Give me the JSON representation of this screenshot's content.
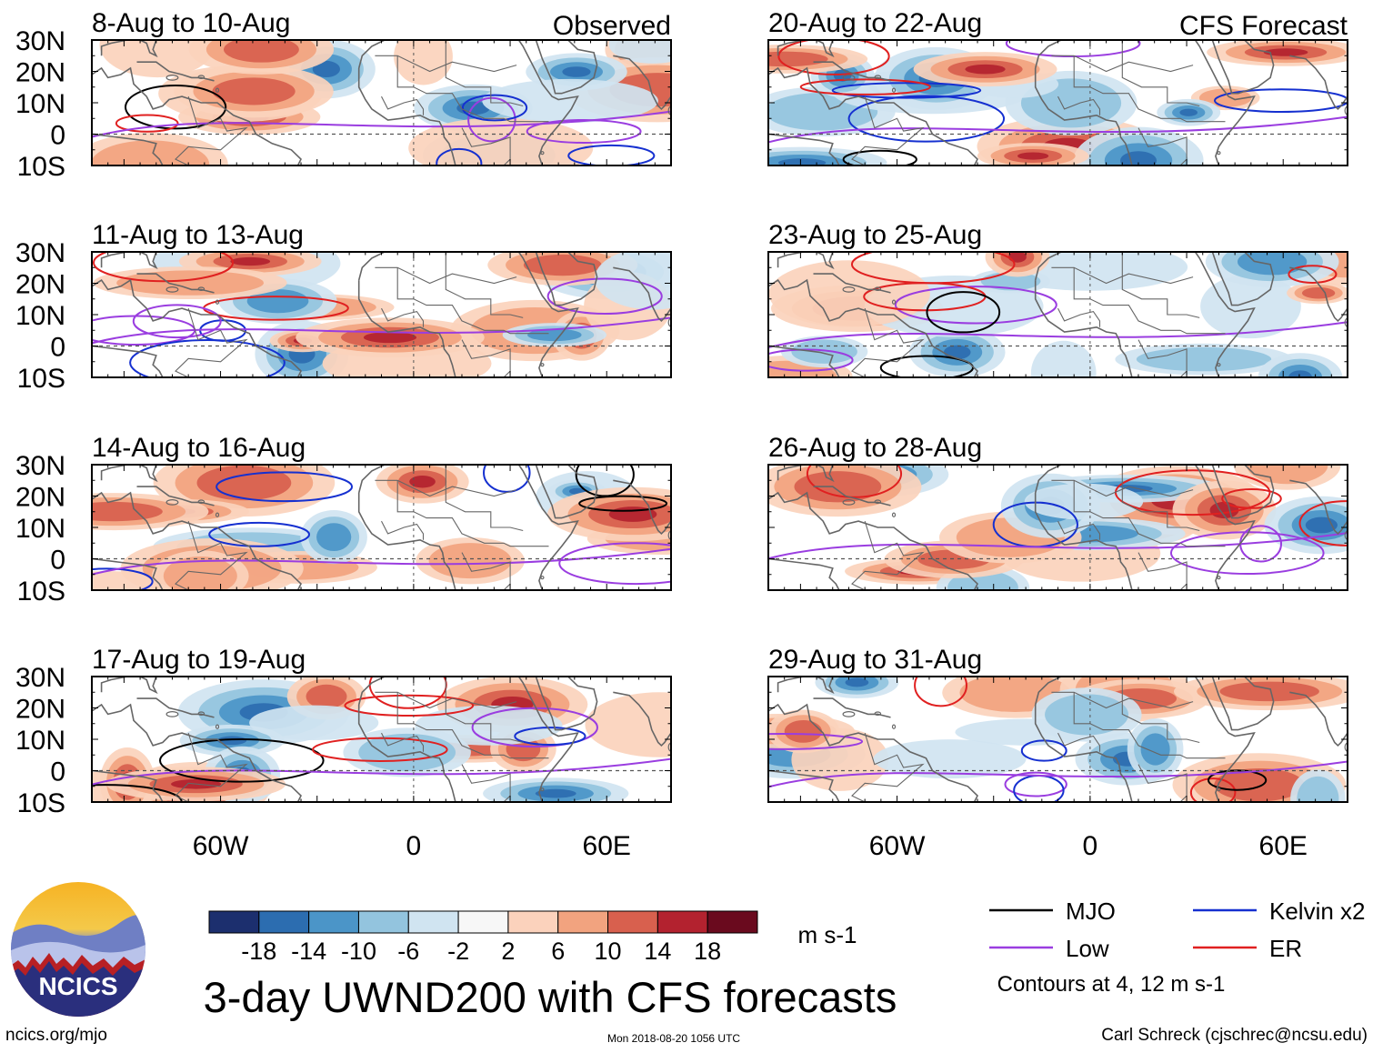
{
  "chart_data": {
    "type": "heatmap",
    "title": "3-day UWND200 with CFS forecasts",
    "variable": "UWND200",
    "units": "m s-1",
    "column_headers": [
      "Observed",
      "CFS Forecast"
    ],
    "x_range_deg": [
      -100,
      80
    ],
    "y_range_deg": [
      -10,
      30
    ],
    "x_tick_values": [
      -60,
      0,
      60
    ],
    "x_tick_labels": [
      "60W",
      "0",
      "60E"
    ],
    "y_tick_values": [
      30,
      20,
      10,
      0,
      -10
    ],
    "y_tick_labels": [
      "30N",
      "20N",
      "10N",
      "0",
      "10S"
    ],
    "panels": [
      {
        "label": "8-Aug to 10-Aug",
        "source": "Observed",
        "seed": 11
      },
      {
        "label": "11-Aug to 13-Aug",
        "source": "Observed",
        "seed": 23
      },
      {
        "label": "14-Aug to 16-Aug",
        "source": "Observed",
        "seed": 37
      },
      {
        "label": "17-Aug to 19-Aug",
        "source": "Observed",
        "seed": 41
      },
      {
        "label": "20-Aug to 22-Aug",
        "source": "CFS Forecast",
        "seed": 53
      },
      {
        "label": "23-Aug to 25-Aug",
        "source": "CFS Forecast",
        "seed": 67
      },
      {
        "label": "26-Aug to 28-Aug",
        "source": "CFS Forecast",
        "seed": 71
      },
      {
        "label": "29-Aug to 31-Aug",
        "source": "CFS Forecast",
        "seed": 89
      }
    ],
    "colorbar": {
      "levels": [
        "-18",
        "-14",
        "-10",
        "-6",
        "-2",
        "2",
        "6",
        "10",
        "14",
        "18"
      ],
      "colors": [
        "#1c2f6e",
        "#2c6db0",
        "#4b95c8",
        "#93c4de",
        "#d0e4f1",
        "#f7f7f7",
        "#fbd2bc",
        "#f2a37f",
        "#d8604e",
        "#b3222f",
        "#6a0a1e"
      ]
    },
    "legend": [
      {
        "label": "MJO",
        "color": "#000000"
      },
      {
        "label": "Kelvin x2",
        "color": "#1530d0"
      },
      {
        "label": "Low",
        "color": "#9a3de0"
      },
      {
        "label": "ER",
        "color": "#e02020"
      }
    ],
    "contour_note": "Contours at 4, 12 m s-1"
  },
  "footer": {
    "logo_text": "NCICS",
    "url": "ncics.org/mjo",
    "timestamp": "Mon 2018-08-20 1056 UTC",
    "author": "Carl Schreck (cjschrec@ncsu.edu)"
  },
  "colors": {
    "land_outline": "#666666",
    "equator_line": "#555555"
  }
}
